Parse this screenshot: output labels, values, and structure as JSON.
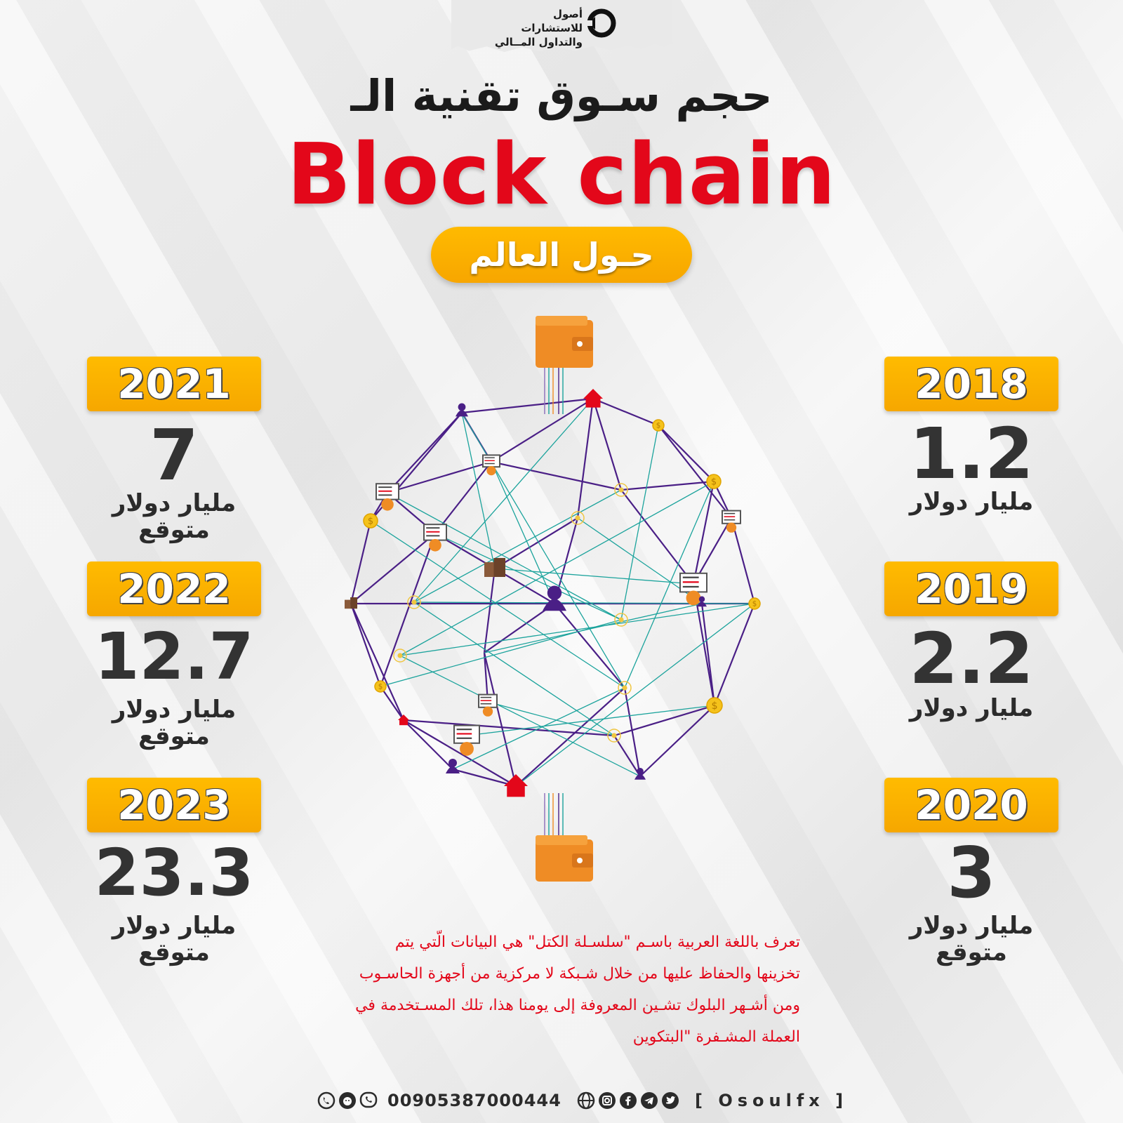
{
  "logo": {
    "line1": "أصول للاستشارات",
    "line2": "والتداول المــالي"
  },
  "title": {
    "arabic": "حجم سـوق تقنية الـ",
    "english": "Block chain",
    "subtitle": "حـول العالم"
  },
  "years": [
    {
      "year": "2018",
      "value": "1.2",
      "unit": "مليار دولار",
      "note": ""
    },
    {
      "year": "2019",
      "value": "2.2",
      "unit": "مليار دولار",
      "note": ""
    },
    {
      "year": "2020",
      "value": "3",
      "unit": "مليار دولار",
      "note": "متوقع"
    },
    {
      "year": "2021",
      "value": "7",
      "unit": "مليار دولار",
      "note": "متوقع"
    },
    {
      "year": "2022",
      "value": "12.7",
      "unit": "مليار دولار",
      "note": "متوقع"
    },
    {
      "year": "2023",
      "value": "23.3",
      "unit": "مليار دولار",
      "note": "متوقع"
    }
  ],
  "description": [
    "تعرف باللغة العربية باسـم \"سلسـلة الكتل\" هي البيانات الّتي يتم",
    "تخزينها والحفاظ عليها من خلال شـبكة لا مركزية من أجهزة الحاسـوب",
    "ومن أشـهر البلوك تشـين المعروفة إلى يومنا هذا، تلك المسـتخدمة في",
    "العملة المشـفرة \"البتكوين"
  ],
  "footer": {
    "phone": "00905387000444",
    "handle": "[ Osoulfx ]",
    "icons_left": [
      "whatsapp-icon",
      "support-icon",
      "viber-icon"
    ],
    "icons_right": [
      "web-icon",
      "instagram-icon",
      "facebook-icon",
      "telegram-icon",
      "twitter-icon"
    ]
  },
  "colors": {
    "accent": "#e3071a",
    "yellow": "#f7a600",
    "network_purple": "#4a1f86",
    "network_teal": "#1ba39c",
    "orange": "#ef8c25"
  },
  "network_icons": [
    "wallet-icon",
    "user-icon",
    "home-icon",
    "coin-icon",
    "computer-icon",
    "building-icon",
    "node-icon"
  ]
}
